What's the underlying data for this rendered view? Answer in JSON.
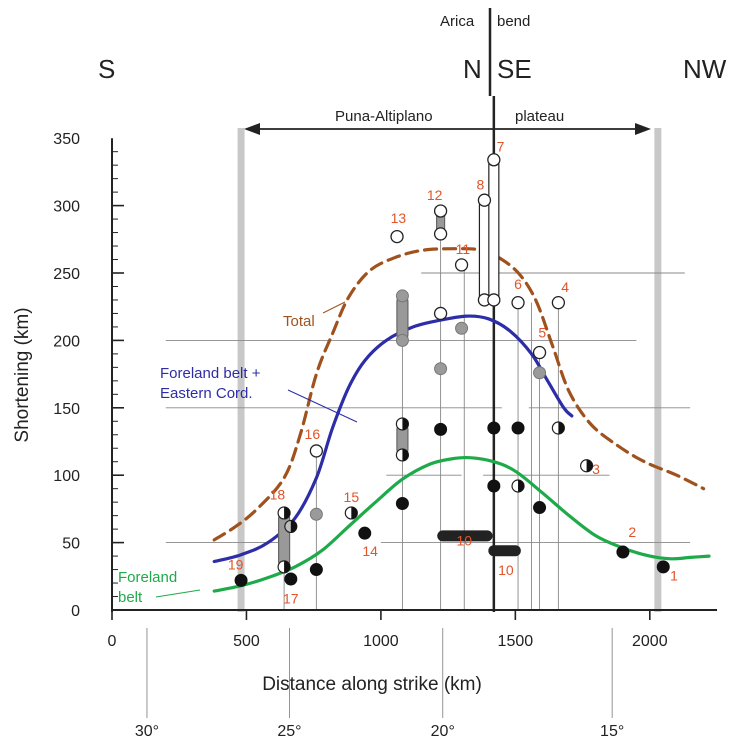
{
  "chart_data": {
    "type": "scatter",
    "header": {
      "south": "S",
      "north": "N",
      "southeast": "SE",
      "northwest": "NW",
      "bend_word1": "Arica",
      "bend_word2": "bend",
      "plateau_word1": "Puna-Altiplano",
      "plateau_word2": "plateau"
    },
    "xlabel": "Distance along strike (km)",
    "ylabel": "Shortening (km)",
    "xlim": [
      0,
      2250
    ],
    "ylim": [
      0,
      350
    ],
    "xticks": [
      {
        "value": 0,
        "label": "0"
      },
      {
        "value": 500,
        "label": "500"
      },
      {
        "value": 1000,
        "label": "1000"
      },
      {
        "value": 1500,
        "label": "1500"
      },
      {
        "value": 2000,
        "label": "2000"
      }
    ],
    "yticks": [
      {
        "value": 0,
        "label": "0"
      },
      {
        "value": 50,
        "label": "50"
      },
      {
        "value": 100,
        "label": "100"
      },
      {
        "value": 150,
        "label": "150"
      },
      {
        "value": 200,
        "label": "200"
      },
      {
        "value": 250,
        "label": "250"
      },
      {
        "value": 300,
        "label": "300"
      },
      {
        "value": 350,
        "label": "350"
      }
    ],
    "latitude_ticks": [
      {
        "x": 130,
        "label": "30°"
      },
      {
        "x": 660,
        "label": "25°"
      },
      {
        "x": 1230,
        "label": "20°"
      },
      {
        "x": 1860,
        "label": "15°"
      }
    ],
    "plateau_range": [
      480,
      2030
    ],
    "bend_x": 1420,
    "curves": [
      {
        "name": "Total",
        "label_line1": "Total",
        "label_line2": "",
        "color": "#a0521e",
        "dashed": true,
        "points": [
          [
            380,
            52
          ],
          [
            460,
            62
          ],
          [
            540,
            75
          ],
          [
            640,
            98
          ],
          [
            700,
            130
          ],
          [
            760,
            175
          ],
          [
            820,
            205
          ],
          [
            880,
            232
          ],
          [
            960,
            252
          ],
          [
            1060,
            262
          ],
          [
            1160,
            267
          ],
          [
            1280,
            268
          ],
          [
            1370,
            267
          ],
          [
            1450,
            260
          ],
          [
            1520,
            248
          ],
          [
            1580,
            228
          ],
          [
            1640,
            195
          ],
          [
            1700,
            162
          ],
          [
            1780,
            138
          ],
          [
            1880,
            122
          ],
          [
            1980,
            110
          ],
          [
            2100,
            100
          ],
          [
            2200,
            90
          ]
        ]
      },
      {
        "name": "Foreland belt + Eastern Cord.",
        "label_line1": "Foreland belt +",
        "label_line2": "Eastern Cord.",
        "color": "#2d2da8",
        "dashed": false,
        "points": [
          [
            380,
            36
          ],
          [
            480,
            41
          ],
          [
            580,
            50
          ],
          [
            680,
            68
          ],
          [
            760,
            98
          ],
          [
            820,
            135
          ],
          [
            880,
            165
          ],
          [
            940,
            185
          ],
          [
            1020,
            200
          ],
          [
            1120,
            210
          ],
          [
            1220,
            215
          ],
          [
            1320,
            218
          ],
          [
            1400,
            216
          ],
          [
            1480,
            207
          ],
          [
            1560,
            190
          ],
          [
            1620,
            170
          ],
          [
            1680,
            150
          ],
          [
            1710,
            144
          ]
        ]
      },
      {
        "name": "Foreland belt",
        "label_line1": "Foreland",
        "label_line2": "belt",
        "color": "#1faa4a",
        "dashed": false,
        "points": [
          [
            380,
            14
          ],
          [
            480,
            18
          ],
          [
            580,
            24
          ],
          [
            680,
            32
          ],
          [
            780,
            44
          ],
          [
            880,
            62
          ],
          [
            980,
            80
          ],
          [
            1080,
            97
          ],
          [
            1180,
            108
          ],
          [
            1260,
            112
          ],
          [
            1330,
            113
          ],
          [
            1420,
            110
          ],
          [
            1500,
            103
          ],
          [
            1600,
            87
          ],
          [
            1700,
            70
          ],
          [
            1800,
            55
          ],
          [
            1900,
            46
          ],
          [
            2000,
            40
          ],
          [
            2080,
            38
          ],
          [
            2150,
            39
          ],
          [
            2220,
            40
          ]
        ]
      }
    ],
    "gray_lines": [
      {
        "x0": 200,
        "x1": 1950,
        "y": 200
      },
      {
        "x0": 200,
        "x1": 1450,
        "y": 150
      },
      {
        "x0": 1550,
        "x1": 2150,
        "y": 150
      },
      {
        "x0": 1150,
        "x1": 2130,
        "y": 250
      },
      {
        "x0": 200,
        "x1": 650,
        "y": 50
      },
      {
        "x0": 1020,
        "x1": 1300,
        "y": 100
      },
      {
        "x0": 1380,
        "x1": 1850,
        "y": 100
      },
      {
        "x0": 1000,
        "x1": 2150,
        "y": 50
      }
    ],
    "bars": [
      {
        "x": 640,
        "y0": 32,
        "y1": 72,
        "fill": "#999999",
        "stroke": "#666666",
        "w": 22
      },
      {
        "x": 1080,
        "y0": 200,
        "y1": 233,
        "fill": "#999999",
        "stroke": "#666666",
        "w": 22
      },
      {
        "x": 1080,
        "y0": 115,
        "y1": 138,
        "fill": "#999999",
        "stroke": "#666666",
        "w": 22
      },
      {
        "x": 1222,
        "y0": 279,
        "y1": 296,
        "fill": "#999999",
        "stroke": "#666666",
        "w": 16
      },
      {
        "x": 1385,
        "y0": 230,
        "y1": 304,
        "fill": "#ffffff",
        "stroke": "#222222",
        "w": 20
      },
      {
        "x": 1420,
        "y0": 230,
        "y1": 334,
        "fill": "#ffffff",
        "stroke": "#222222",
        "w": 20
      }
    ],
    "ranges": [
      {
        "x0": 1230,
        "x1": 1395,
        "y": 55,
        "color": "#222222"
      },
      {
        "x0": 1420,
        "x1": 1500,
        "y": 44,
        "color": "#222222"
      }
    ],
    "vlines": [
      {
        "x": 640,
        "y0": 0,
        "y1": 72
      },
      {
        "x": 760,
        "y0": 0,
        "y1": 118
      },
      {
        "x": 1080,
        "y0": 0,
        "y1": 233
      },
      {
        "x": 1222,
        "y0": 0,
        "y1": 296
      },
      {
        "x": 1310,
        "y0": 0,
        "y1": 256
      },
      {
        "x": 1420,
        "y0": 0,
        "y1": 334
      },
      {
        "x": 1510,
        "y0": 0,
        "y1": 228
      },
      {
        "x": 1560,
        "y0": 0,
        "y1": 228
      },
      {
        "x": 1590,
        "y0": 0,
        "y1": 192
      },
      {
        "x": 1660,
        "y0": 0,
        "y1": 228
      }
    ],
    "points": [
      {
        "x": 480,
        "y": 22,
        "style": "black"
      },
      {
        "x": 640,
        "y": 72,
        "style": "half"
      },
      {
        "x": 640,
        "y": 32,
        "style": "half"
      },
      {
        "x": 665,
        "y": 62,
        "style": "half-gray"
      },
      {
        "x": 665,
        "y": 23,
        "style": "black"
      },
      {
        "x": 760,
        "y": 118,
        "style": "white"
      },
      {
        "x": 760,
        "y": 71,
        "style": "gray"
      },
      {
        "x": 760,
        "y": 30,
        "style": "black"
      },
      {
        "x": 890,
        "y": 72,
        "style": "half"
      },
      {
        "x": 940,
        "y": 57,
        "style": "black"
      },
      {
        "x": 1080,
        "y": 233,
        "style": "gray"
      },
      {
        "x": 1080,
        "y": 200,
        "style": "gray"
      },
      {
        "x": 1080,
        "y": 138,
        "style": "half"
      },
      {
        "x": 1080,
        "y": 115,
        "style": "half"
      },
      {
        "x": 1080,
        "y": 79,
        "style": "black"
      },
      {
        "x": 1060,
        "y": 277,
        "style": "white"
      },
      {
        "x": 1222,
        "y": 296,
        "style": "white"
      },
      {
        "x": 1222,
        "y": 279,
        "style": "white"
      },
      {
        "x": 1222,
        "y": 220,
        "style": "white"
      },
      {
        "x": 1222,
        "y": 179,
        "style": "gray"
      },
      {
        "x": 1222,
        "y": 134,
        "style": "black"
      },
      {
        "x": 1300,
        "y": 256,
        "style": "white"
      },
      {
        "x": 1300,
        "y": 209,
        "style": "gray"
      },
      {
        "x": 1385,
        "y": 304,
        "style": "white"
      },
      {
        "x": 1385,
        "y": 230,
        "style": "white"
      },
      {
        "x": 1420,
        "y": 334,
        "style": "white"
      },
      {
        "x": 1420,
        "y": 230,
        "style": "white"
      },
      {
        "x": 1420,
        "y": 135,
        "style": "black"
      },
      {
        "x": 1420,
        "y": 92,
        "style": "black"
      },
      {
        "x": 1510,
        "y": 228,
        "style": "white"
      },
      {
        "x": 1510,
        "y": 135,
        "style": "black"
      },
      {
        "x": 1510,
        "y": 92,
        "style": "half"
      },
      {
        "x": 1590,
        "y": 191,
        "style": "white"
      },
      {
        "x": 1590,
        "y": 176,
        "style": "gray"
      },
      {
        "x": 1590,
        "y": 76,
        "style": "black"
      },
      {
        "x": 1660,
        "y": 228,
        "style": "white"
      },
      {
        "x": 1660,
        "y": 135,
        "style": "half"
      },
      {
        "x": 1765,
        "y": 107,
        "style": "half"
      },
      {
        "x": 1900,
        "y": 43,
        "style": "black"
      },
      {
        "x": 2050,
        "y": 32,
        "style": "black"
      }
    ],
    "site_labels": [
      {
        "x": 2090,
        "y": 22,
        "label": "1"
      },
      {
        "x": 1935,
        "y": 54,
        "label": "2"
      },
      {
        "x": 1800,
        "y": 101,
        "label": "3"
      },
      {
        "x": 1685,
        "y": 236,
        "label": "4"
      },
      {
        "x": 1600,
        "y": 202,
        "label": "5"
      },
      {
        "x": 1510,
        "y": 238,
        "label": "6"
      },
      {
        "x": 1445,
        "y": 340,
        "label": "7"
      },
      {
        "x": 1370,
        "y": 312,
        "label": "8"
      },
      {
        "x": 1310,
        "y": 48,
        "label": "10"
      },
      {
        "x": 1465,
        "y": 26,
        "label": "10"
      },
      {
        "x": 1305,
        "y": 264,
        "label": "11"
      },
      {
        "x": 1200,
        "y": 304,
        "label": "12"
      },
      {
        "x": 1065,
        "y": 287,
        "label": "13"
      },
      {
        "x": 960,
        "y": 40,
        "label": "14"
      },
      {
        "x": 890,
        "y": 80,
        "label": "15"
      },
      {
        "x": 745,
        "y": 127,
        "label": "16"
      },
      {
        "x": 665,
        "y": 5,
        "label": "17"
      },
      {
        "x": 615,
        "y": 82,
        "label": "18"
      },
      {
        "x": 460,
        "y": 30,
        "label": "19"
      }
    ]
  }
}
